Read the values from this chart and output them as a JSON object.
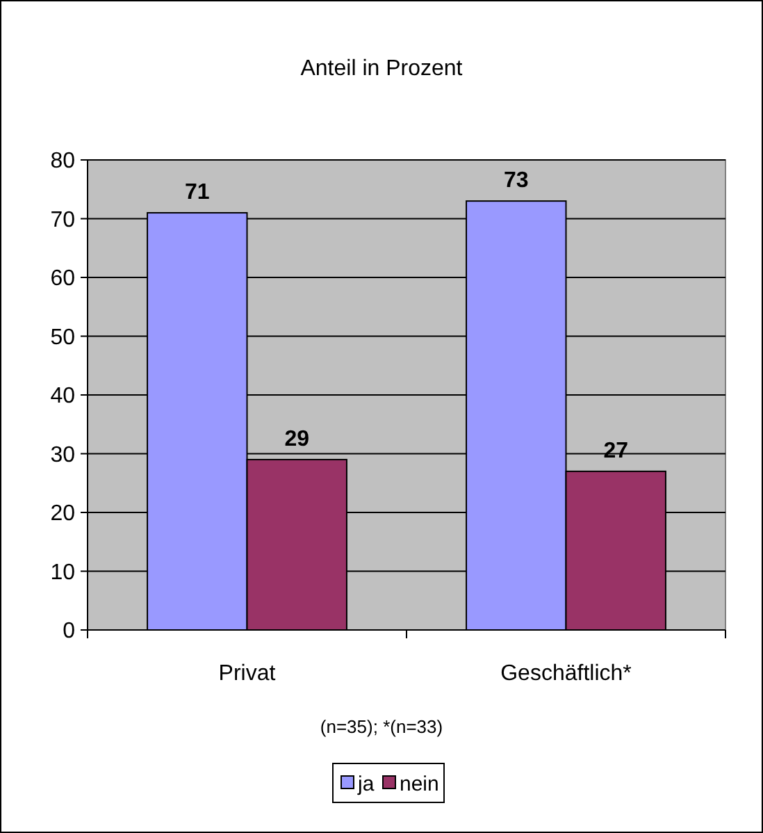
{
  "chart_data": {
    "type": "bar",
    "title": "Anteil in Prozent",
    "categories": [
      "Privat",
      "Geschäftlich*"
    ],
    "series": [
      {
        "name": "ja",
        "color": "#9999ff",
        "values": [
          71,
          73
        ]
      },
      {
        "name": "nein",
        "color": "#993366",
        "values": [
          29,
          27
        ]
      }
    ],
    "ylim": [
      0,
      80
    ],
    "yticks": [
      0,
      10,
      20,
      30,
      40,
      50,
      60,
      70,
      80
    ],
    "grid": "y",
    "legend": "bottom",
    "data_labels": true,
    "annotations": [
      "(n=35); *(n=33)"
    ]
  }
}
